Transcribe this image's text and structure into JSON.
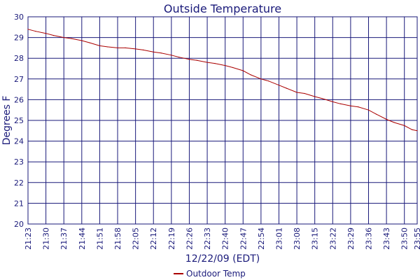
{
  "chart_data": {
    "type": "line",
    "title": "Outside Temperature",
    "xlabel": "12/22/09 (EDT)",
    "ylabel": "Degrees F",
    "ylim": [
      20,
      30
    ],
    "yticks": [
      20,
      21,
      22,
      23,
      24,
      25,
      26,
      27,
      28,
      29,
      30
    ],
    "x_tick_labels": [
      "21:23",
      "21:30",
      "21:37",
      "21:44",
      "21:51",
      "21:58",
      "22:05",
      "22:12",
      "22:19",
      "22:26",
      "22:33",
      "22:40",
      "22:47",
      "22:54",
      "23:01",
      "23:08",
      "23:15",
      "23:22",
      "23:29",
      "23:36",
      "23:43",
      "23:50",
      "23:55"
    ],
    "xlim": [
      "21:23",
      "23:55"
    ],
    "grid": true,
    "legend": "bottom-center",
    "colors": {
      "series": "#aa0000",
      "grid": "#1a1a7a",
      "text": "#1a1a7a"
    },
    "series": [
      {
        "name": "Outdoor Temp",
        "x": [
          "21:23",
          "21:26",
          "21:30",
          "21:33",
          "21:37",
          "21:40",
          "21:44",
          "21:47",
          "21:51",
          "21:54",
          "21:58",
          "22:01",
          "22:05",
          "22:08",
          "22:12",
          "22:15",
          "22:19",
          "22:22",
          "22:26",
          "22:29",
          "22:33",
          "22:36",
          "22:40",
          "22:43",
          "22:47",
          "22:50",
          "22:54",
          "22:57",
          "23:01",
          "23:04",
          "23:08",
          "23:11",
          "23:15",
          "23:18",
          "23:22",
          "23:25",
          "23:29",
          "23:32",
          "23:36",
          "23:39",
          "23:43",
          "23:46",
          "23:50",
          "23:53",
          "23:55"
        ],
        "values": [
          29.4,
          29.3,
          29.2,
          29.1,
          29.0,
          28.95,
          28.85,
          28.75,
          28.6,
          28.55,
          28.5,
          28.5,
          28.45,
          28.4,
          28.3,
          28.25,
          28.15,
          28.05,
          27.95,
          27.9,
          27.8,
          27.75,
          27.65,
          27.55,
          27.4,
          27.2,
          27.0,
          26.9,
          26.7,
          26.55,
          26.35,
          26.3,
          26.15,
          26.05,
          25.9,
          25.8,
          25.7,
          25.65,
          25.5,
          25.3,
          25.05,
          24.9,
          24.75,
          24.55,
          24.5
        ]
      }
    ]
  }
}
